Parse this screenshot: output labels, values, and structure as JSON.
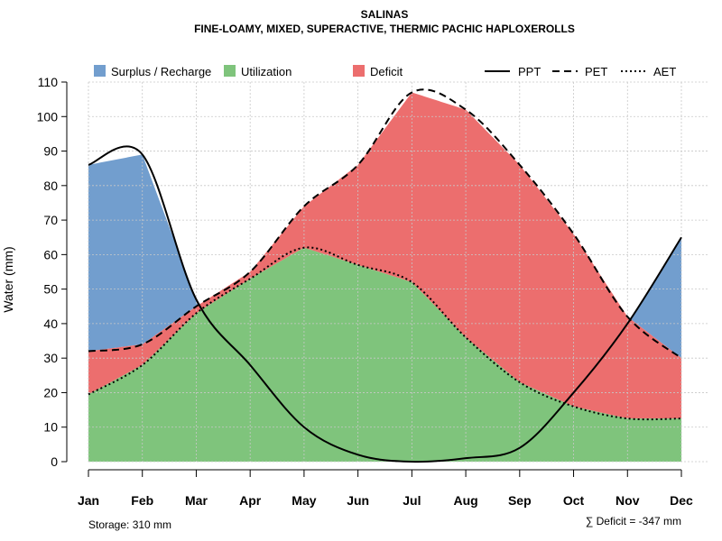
{
  "chart_data": {
    "type": "area",
    "title": "SALINAS",
    "subtitle": "FINE-LOAMY, MIXED, SUPERACTIVE, THERMIC PACHIC HAPLOXEROLLS",
    "ylabel": "Water (mm)",
    "xlabel": "",
    "ylim": [
      0,
      110
    ],
    "yticks": [
      0,
      10,
      20,
      30,
      40,
      50,
      60,
      70,
      80,
      90,
      100,
      110
    ],
    "categories": [
      "Jan",
      "Feb",
      "Mar",
      "Apr",
      "May",
      "Jun",
      "Jul",
      "Aug",
      "Sep",
      "Oct",
      "Nov",
      "Dec"
    ],
    "grid": true,
    "series": [
      {
        "name": "PPT",
        "values": [
          86,
          89,
          47,
          28,
          10,
          2,
          0,
          1,
          4,
          20,
          40,
          65
        ]
      },
      {
        "name": "PET",
        "values": [
          32,
          34,
          45,
          55,
          74,
          86,
          107,
          102,
          86,
          66,
          42,
          30
        ]
      },
      {
        "name": "AET",
        "values": [
          19.5,
          28,
          43,
          53,
          62,
          57,
          52,
          36,
          23,
          16,
          12.5,
          12.5
        ]
      }
    ],
    "legend": {
      "position": "top",
      "areas": [
        {
          "name": "Surplus / Recharge",
          "color": "#729ECE"
        },
        {
          "name": "Utilization",
          "color": "#7FC47C"
        },
        {
          "name": "Deficit",
          "color": "#EC6E6E"
        }
      ],
      "lines": [
        {
          "name": "PPT",
          "style": "solid"
        },
        {
          "name": "PET",
          "style": "dashed"
        },
        {
          "name": "AET",
          "style": "dotted"
        }
      ]
    },
    "annotations": {
      "storage": "Storage: 310 mm",
      "deficit": "∑ Deficit = -347 mm"
    }
  }
}
